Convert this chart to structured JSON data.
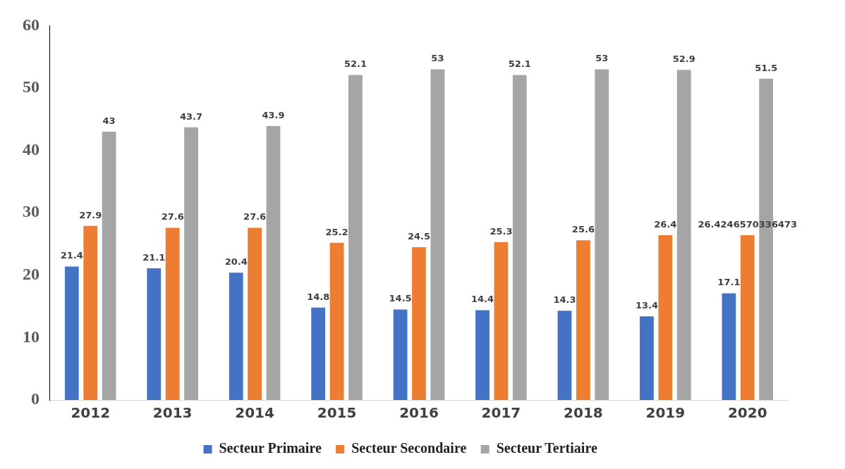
{
  "chart_data": {
    "type": "bar",
    "categories": [
      "2012",
      "2013",
      "2014",
      "2015",
      "2016",
      "2017",
      "2018",
      "2019",
      "2020"
    ],
    "series": [
      {
        "name": "Secteur Primaire",
        "color": "#4472c4",
        "values": [
          21.4,
          21.1,
          20.4,
          14.8,
          14.5,
          14.4,
          14.3,
          13.4,
          17.1
        ]
      },
      {
        "name": "Secteur Secondaire",
        "color": "#ed7d31",
        "values": [
          27.9,
          27.6,
          27.6,
          25.2,
          24.5,
          25.3,
          25.6,
          26.4,
          26.4246570336473
        ]
      },
      {
        "name": "Secteur Tertiaire",
        "color": "#a5a5a5",
        "values": [
          43,
          43.7,
          43.9,
          52.1,
          53,
          52.1,
          53,
          52.9,
          51.5
        ]
      }
    ],
    "ylim": [
      0,
      60
    ],
    "yticks": [
      0,
      10,
      20,
      30,
      40,
      50,
      60
    ],
    "grid": false,
    "legend": "bottom",
    "data_labels": true
  }
}
